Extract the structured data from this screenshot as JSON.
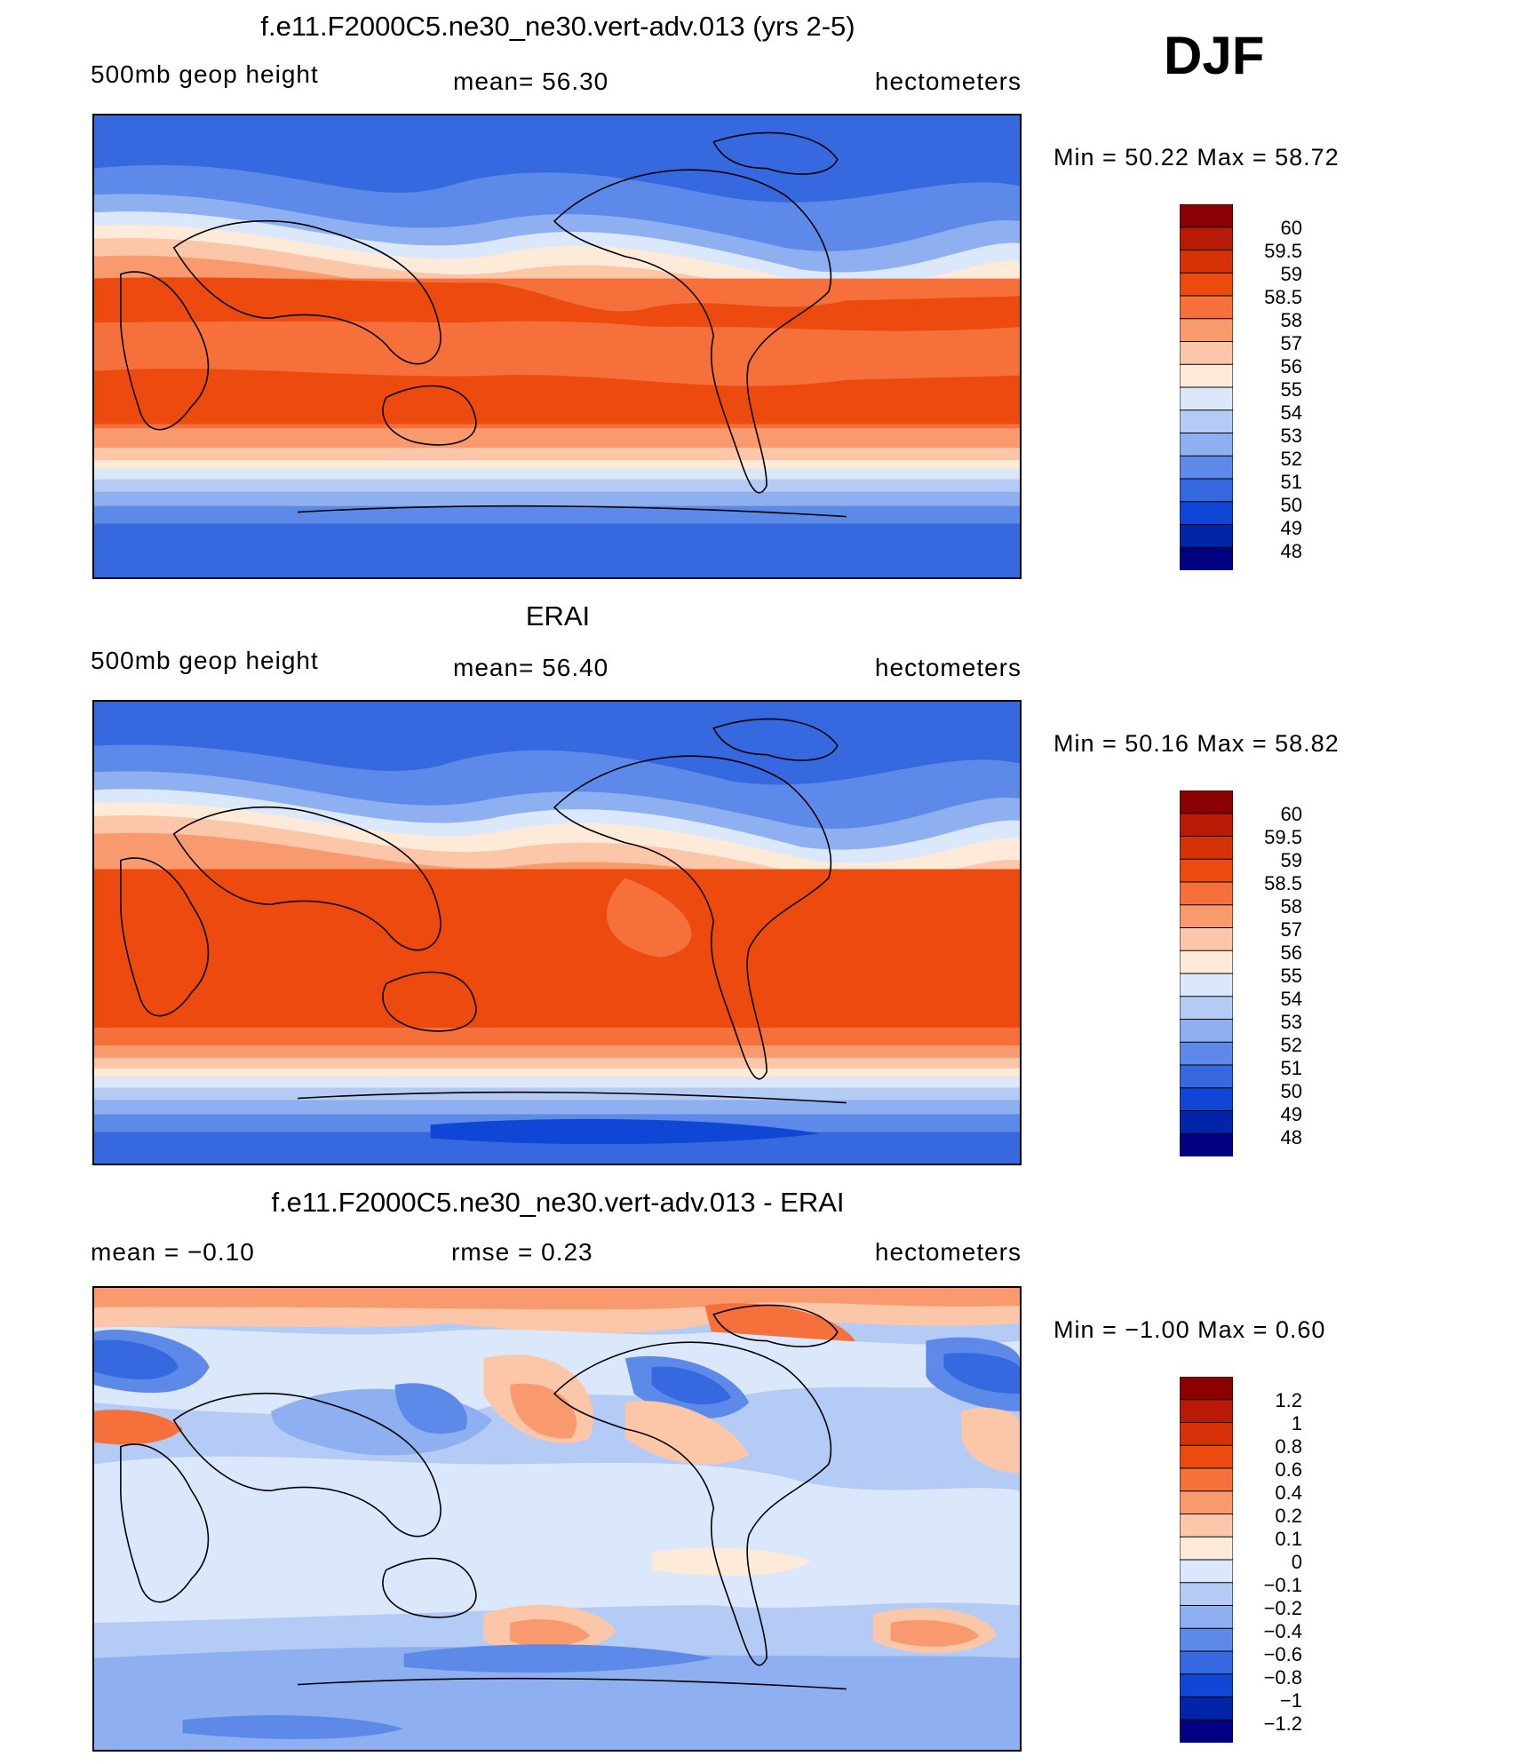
{
  "season_label": "DJF",
  "panels": [
    {
      "title": "f.e11.F2000C5.ne30_ne30.vert-adv.013 (yrs 2-5)",
      "left_label": "500mb geop height",
      "center_label": "mean=   56.30",
      "right_label": "hectometers",
      "minmax": "Min =    50.22  Max =    58.72",
      "colorbar_labels": [
        "60",
        "59.5",
        "59",
        "58.5",
        "58",
        "57",
        "56",
        "55",
        "54",
        "53",
        "52",
        "51",
        "50",
        "49",
        "48"
      ],
      "palette": [
        "#8b0000",
        "#b81b05",
        "#d63208",
        "#ed4a10",
        "#f6703b",
        "#f99a6e",
        "#fcc6a8",
        "#feead8",
        "#dbe8fb",
        "#b4cbf6",
        "#8fb0f0",
        "#5d8ae8",
        "#3668e0",
        "#1046d5",
        "#0025a8",
        "#000080"
      ]
    },
    {
      "title": "ERAI",
      "left_label": "500mb geop height",
      "center_label": "mean=   56.40",
      "right_label": "hectometers",
      "minmax": "Min =    50.16  Max =    58.82",
      "colorbar_labels": [
        "60",
        "59.5",
        "59",
        "58.5",
        "58",
        "57",
        "56",
        "55",
        "54",
        "53",
        "52",
        "51",
        "50",
        "49",
        "48"
      ],
      "palette": [
        "#8b0000",
        "#b81b05",
        "#d63208",
        "#ed4a10",
        "#f6703b",
        "#f99a6e",
        "#fcc6a8",
        "#feead8",
        "#dbe8fb",
        "#b4cbf6",
        "#8fb0f0",
        "#5d8ae8",
        "#3668e0",
        "#1046d5",
        "#0025a8",
        "#000080"
      ]
    },
    {
      "title": "f.e11.F2000C5.ne30_ne30.vert-adv.013 - ERAI",
      "left_label": "mean =    −0.10",
      "center_label": "rmse =     0.23",
      "right_label": "hectometers",
      "minmax": "Min =    −1.00  Max =     0.60",
      "colorbar_labels": [
        "1.2",
        "1",
        "0.8",
        "0.6",
        "0.4",
        "0.2",
        "0.1",
        "0",
        "−0.1",
        "−0.2",
        "−0.4",
        "−0.6",
        "−0.8",
        "−1",
        "−1.2"
      ],
      "palette": [
        "#8b0000",
        "#b81b05",
        "#d63208",
        "#ed4a10",
        "#f6703b",
        "#f99a6e",
        "#fcc6a8",
        "#feead8",
        "#dbe8fb",
        "#b4cbf6",
        "#8fb0f0",
        "#5d8ae8",
        "#3668e0",
        "#1046d5",
        "#0025a8",
        "#000080"
      ]
    }
  ]
}
